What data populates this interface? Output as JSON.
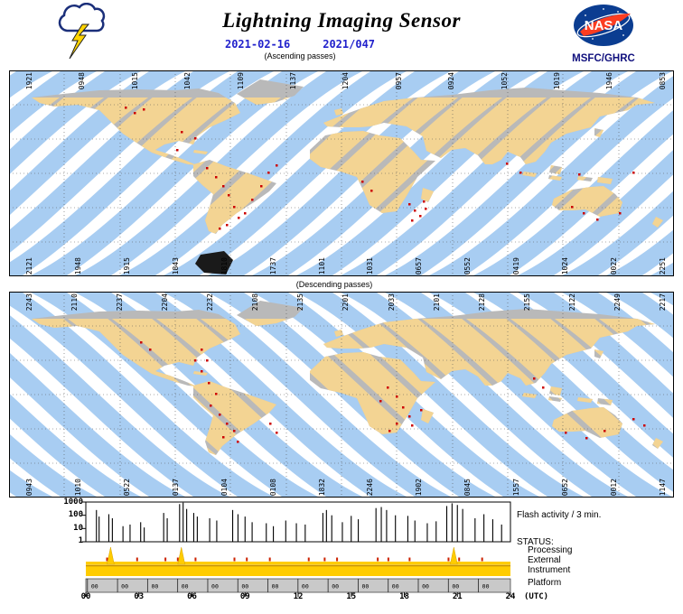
{
  "header": {
    "title": "Lightning Imaging Sensor",
    "date_iso": "2021-02-16",
    "date_doy": "2021/047",
    "logo_text": "NASA",
    "agency": "MSFC/GHRC"
  },
  "maps": {
    "ascending": {
      "label": "(Ascending passes)",
      "top_labels": [
        "1921",
        "0948",
        "1015",
        "1042",
        "1109",
        "1137",
        "1204",
        "0957",
        "0924",
        "1052",
        "1019",
        "1946",
        "0853"
      ],
      "bottom_labels": [
        "2121",
        "1948",
        "1915",
        "1843",
        "1810",
        "1737",
        "1101",
        "1031",
        "0657",
        "0552",
        "0419",
        "1024",
        "0022",
        "2251"
      ],
      "flash_points": [
        [
          128,
          40
        ],
        [
          138,
          46
        ],
        [
          148,
          42
        ],
        [
          190,
          67
        ],
        [
          205,
          74
        ],
        [
          185,
          87
        ],
        [
          218,
          107
        ],
        [
          228,
          117
        ],
        [
          236,
          127
        ],
        [
          242,
          137
        ],
        [
          248,
          150
        ],
        [
          253,
          162
        ],
        [
          240,
          170
        ],
        [
          260,
          157
        ],
        [
          268,
          142
        ],
        [
          278,
          127
        ],
        [
          286,
          112
        ],
        [
          295,
          104
        ],
        [
          232,
          174
        ],
        [
          390,
          122
        ],
        [
          400,
          132
        ],
        [
          442,
          147
        ],
        [
          448,
          154
        ],
        [
          454,
          160
        ],
        [
          460,
          152
        ],
        [
          445,
          165
        ],
        [
          458,
          144
        ],
        [
          550,
          102
        ],
        [
          565,
          112
        ],
        [
          622,
          150
        ],
        [
          635,
          157
        ],
        [
          650,
          164
        ],
        [
          675,
          157
        ],
        [
          690,
          112
        ],
        [
          630,
          114
        ]
      ]
    },
    "descending": {
      "label": "(Descending passes)",
      "top_labels": [
        "2243",
        "2110",
        "2237",
        "2204",
        "2232",
        "2108",
        "2135",
        "2201",
        "2033",
        "2101",
        "2128",
        "2155",
        "2122",
        "2249",
        "2217"
      ],
      "bottom_labels": [
        "0943",
        "1010",
        "0522",
        "0137",
        "0104",
        "0108",
        "1832",
        "2246",
        "1902",
        "0845",
        "1557",
        "0652",
        "0012",
        "1147"
      ],
      "flash_points": [
        [
          212,
          63
        ],
        [
          218,
          75
        ],
        [
          212,
          87
        ],
        [
          220,
          100
        ],
        [
          228,
          112
        ],
        [
          222,
          125
        ],
        [
          232,
          135
        ],
        [
          240,
          145
        ],
        [
          248,
          153
        ],
        [
          236,
          160
        ],
        [
          252,
          165
        ],
        [
          288,
          145
        ],
        [
          295,
          155
        ],
        [
          145,
          55
        ],
        [
          155,
          63
        ],
        [
          205,
          75
        ],
        [
          418,
          105
        ],
        [
          428,
          115
        ],
        [
          435,
          127
        ],
        [
          442,
          137
        ],
        [
          428,
          145
        ],
        [
          420,
          153
        ],
        [
          445,
          147
        ],
        [
          410,
          120
        ],
        [
          455,
          130
        ],
        [
          580,
          95
        ],
        [
          590,
          105
        ],
        [
          615,
          155
        ],
        [
          638,
          161
        ],
        [
          658,
          153
        ],
        [
          690,
          140
        ],
        [
          702,
          147
        ]
      ]
    }
  },
  "chart_data": {
    "type": "bar",
    "title": "Flash activity / 3 min.",
    "y_scale": "log",
    "ylim": [
      1,
      1000
    ],
    "xlim_hours": [
      0,
      24
    ],
    "y_tick_labels": [
      "1000",
      "100",
      "10",
      "1"
    ],
    "x_ticks": [
      "00",
      "03",
      "06",
      "09",
      "12",
      "15",
      "18",
      "21",
      "24"
    ],
    "x_axis_suffix": "(UTC)",
    "flash_series": [
      [
        0.6,
        250
      ],
      [
        0.75,
        80
      ],
      [
        1.3,
        120
      ],
      [
        1.5,
        60
      ],
      [
        2.1,
        15
      ],
      [
        2.5,
        20
      ],
      [
        3.1,
        30
      ],
      [
        3.3,
        12
      ],
      [
        4.4,
        150
      ],
      [
        4.6,
        60
      ],
      [
        5.3,
        700
      ],
      [
        5.5,
        900
      ],
      [
        5.7,
        300
      ],
      [
        6.1,
        150
      ],
      [
        6.3,
        80
      ],
      [
        7.0,
        60
      ],
      [
        7.4,
        40
      ],
      [
        8.3,
        250
      ],
      [
        8.6,
        120
      ],
      [
        9.0,
        80
      ],
      [
        9.4,
        30
      ],
      [
        10.2,
        25
      ],
      [
        10.6,
        15
      ],
      [
        11.3,
        40
      ],
      [
        11.9,
        25
      ],
      [
        12.4,
        20
      ],
      [
        13.4,
        150
      ],
      [
        13.6,
        250
      ],
      [
        13.9,
        100
      ],
      [
        14.5,
        30
      ],
      [
        15.0,
        90
      ],
      [
        15.4,
        50
      ],
      [
        16.4,
        350
      ],
      [
        16.7,
        420
      ],
      [
        17.0,
        250
      ],
      [
        17.5,
        100
      ],
      [
        18.2,
        90
      ],
      [
        18.6,
        40
      ],
      [
        19.3,
        25
      ],
      [
        19.8,
        35
      ],
      [
        20.4,
        500
      ],
      [
        20.7,
        800
      ],
      [
        21.0,
        600
      ],
      [
        21.3,
        300
      ],
      [
        22.0,
        60
      ],
      [
        22.5,
        120
      ],
      [
        23.0,
        50
      ],
      [
        23.5,
        20
      ]
    ],
    "status": {
      "heading": "STATUS:",
      "rows": [
        "Processing",
        "External",
        "Instrument",
        "Platform"
      ],
      "processing_spike_hours": [
        1.4,
        5.4,
        20.8
      ],
      "external_event_hours": [
        1.2,
        2.9,
        4.5,
        5.2,
        6.2,
        8.4,
        9.1,
        10.4,
        12.6,
        13.5,
        14.2,
        16.5,
        17.1,
        18.3,
        20.5,
        21.1,
        22.4
      ],
      "instrument_on_hours": [
        0,
        24
      ],
      "platform_granule_label": "00",
      "platform_granule_hours": [
        0.5,
        2.2,
        3.9,
        5.6,
        7.3,
        9.0,
        10.7,
        12.4,
        14.1,
        15.8,
        17.5,
        19.2,
        20.9,
        22.6
      ]
    }
  },
  "colors": {
    "swath_blue": "#a8cdf2",
    "coverage_tan": "#f3d493",
    "land_gray": "#b9b9b9",
    "flash_red": "#cc0000",
    "status_gold": "#ffcc00",
    "platform_gray": "#c9c9c9",
    "date_blue": "#2222cc",
    "nasa_blue": "#0b3d91",
    "nasa_red": "#fc3d21"
  }
}
